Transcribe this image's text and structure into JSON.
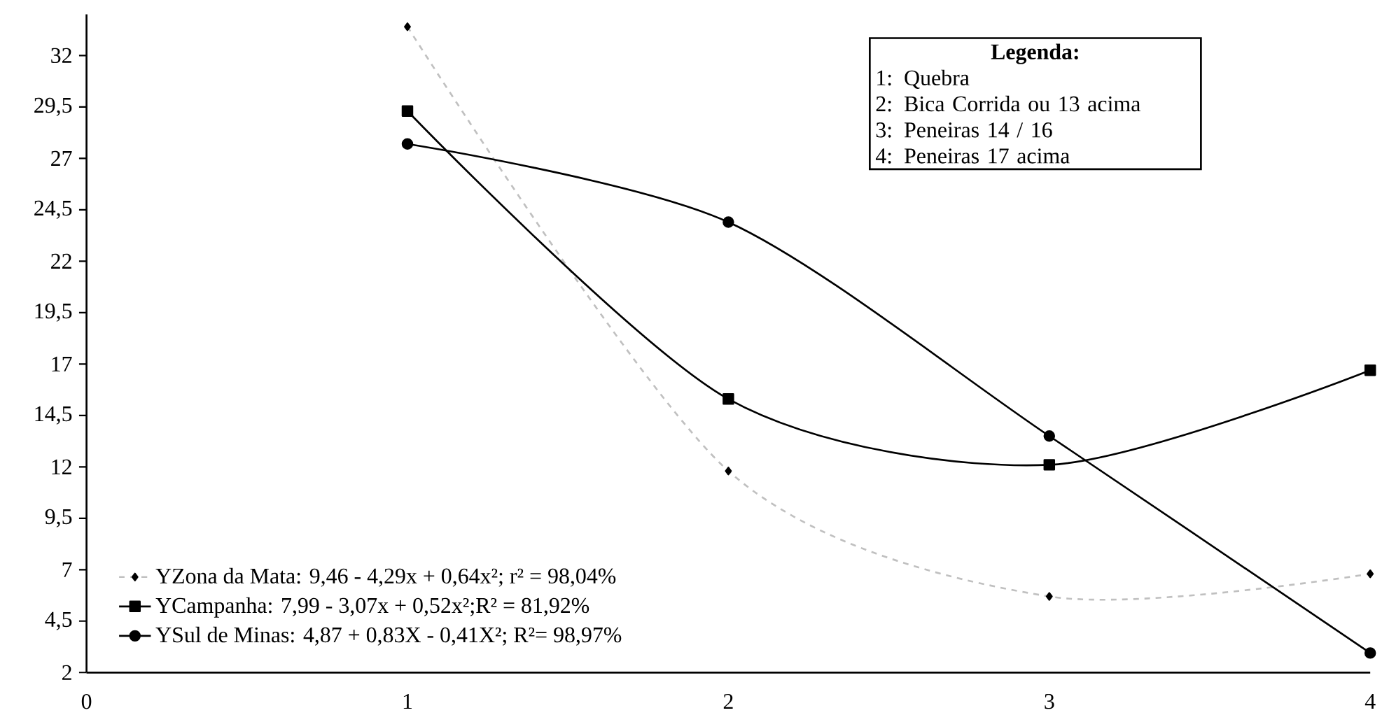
{
  "chart_data": {
    "type": "line",
    "x": [
      1,
      2,
      3,
      4
    ],
    "xlim": [
      0,
      4
    ],
    "xticks": [
      0,
      1,
      2,
      3,
      4
    ],
    "ylim": [
      2,
      34
    ],
    "yticks": [
      2,
      {
        "value": 4.5,
        "label": "4,5"
      },
      7,
      {
        "value": 9.5,
        "label": "9,5"
      },
      12,
      {
        "value": 14.5,
        "label": "14,5"
      },
      17,
      {
        "value": 19.5,
        "label": "19,5"
      },
      22,
      {
        "value": 24.5,
        "label": "24,5"
      },
      27,
      {
        "value": 29.5,
        "label": "29,5"
      },
      32
    ],
    "series": [
      {
        "name": "YZona da Mata: 9,46 - 4,29x + 0,64x²; r² = 98,04%",
        "color": "#c0c0c0",
        "marker": "diamond",
        "line_style": "dashed",
        "values": [
          33.4,
          11.8,
          5.7,
          6.8
        ]
      },
      {
        "name": "YCampanha: 7,99 - 3,07x + 0,52x²;R² = 81,92%",
        "color": "#000000",
        "marker": "square",
        "line_style": "solid",
        "values": [
          29.3,
          15.3,
          12.1,
          16.7
        ]
      },
      {
        "name": "YSul de Minas: 4,87 + 0,83X - 0,41X²; R²= 98,97%",
        "color": "#000000",
        "marker": "circle",
        "line_style": "solid",
        "values": [
          27.7,
          23.9,
          13.5,
          2.95
        ]
      }
    ],
    "legend": "bottom left",
    "grid": false,
    "annotations": [
      "Legenda:",
      "1: Quebra",
      "2: Bica Corrida ou 13 acima",
      "3: Peneiras 14 / 16",
      "4: Peneiras 17 acima"
    ]
  }
}
